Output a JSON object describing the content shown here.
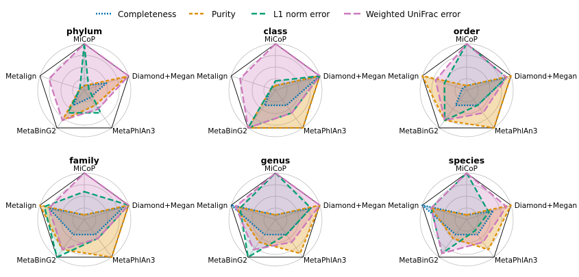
{
  "legend": [
    {
      "name": "Completeness",
      "color": "#0173b2",
      "dash": "2,2"
    },
    {
      "name": "Purity",
      "color": "#de8f05",
      "dash": "5,3"
    },
    {
      "name": "L1 norm error",
      "color": "#029e73",
      "dash": "8,4"
    },
    {
      "name": "Weighted UniFrac error",
      "color": "#cc78bc",
      "dash": "10,4"
    }
  ],
  "highlight_color": "#ff0000",
  "chart_data": [
    {
      "type": "radar",
      "title": "phylum",
      "axes": [
        "MiCoP",
        "Diamond+Megan",
        "MetaPhlAn3",
        "MetaBinG2",
        "Metalign"
      ],
      "highlight": [
        "Metalign"
      ],
      "grid_levels": 4,
      "rmax": 1,
      "series": [
        {
          "name": "Completeness",
          "values": [
            0.1,
            0.5,
            0.2,
            0.4,
            0.1
          ]
        },
        {
          "name": "Purity",
          "values": [
            0.1,
            0.96,
            0.4,
            0.8,
            0.1
          ]
        },
        {
          "name": "L1 norm error",
          "values": [
            1.0,
            0.1,
            0.6,
            0.6,
            0.1
          ]
        },
        {
          "name": "Weighted UniFrac error",
          "values": [
            1.0,
            1.0,
            0.5,
            0.8,
            0.8
          ]
        }
      ]
    },
    {
      "type": "radar",
      "title": "class",
      "axes": [
        "MiCoP",
        "Diamond+Megan",
        "MetaPhlAn3",
        "MetaBinG2",
        "Metalign"
      ],
      "highlight": [
        "MiCoP",
        "Metalign"
      ],
      "grid_levels": 4,
      "rmax": 1,
      "series": [
        {
          "name": "Completeness",
          "values": [
            0.1,
            1.0,
            0.4,
            0.4,
            0.1
          ]
        },
        {
          "name": "Purity",
          "values": [
            0.1,
            1.0,
            1.0,
            1.0,
            0.1
          ]
        },
        {
          "name": "L1 norm error",
          "values": [
            0.2,
            1.0,
            0.6,
            1.0,
            0.1
          ]
        },
        {
          "name": "Weighted UniFrac error",
          "values": [
            1.0,
            1.0,
            0.6,
            1.0,
            0.8
          ]
        }
      ]
    },
    {
      "type": "radar",
      "title": "order",
      "axes": [
        "MiCoP",
        "Diamond+Megan",
        "MetaPhlAn3",
        "MetaBinG2",
        "Metalign"
      ],
      "highlight": [],
      "grid_levels": 4,
      "rmax": 1,
      "series": [
        {
          "name": "Completeness",
          "values": [
            0.1,
            0.9,
            0.4,
            0.4,
            0.1
          ]
        },
        {
          "name": "Purity",
          "values": [
            0.1,
            1.0,
            1.0,
            0.8,
            1.0
          ]
        },
        {
          "name": "L1 norm error",
          "values": [
            1.0,
            0.9,
            0.4,
            0.8,
            0.5
          ]
        },
        {
          "name": "Weighted UniFrac error",
          "values": [
            1.0,
            0.9,
            0.6,
            0.8,
            0.7
          ]
        }
      ]
    },
    {
      "type": "radar",
      "title": "family",
      "axes": [
        "MiCoP",
        "Diamond+Megan",
        "MetaPhlAn3",
        "MetaBinG2",
        "Metalign"
      ],
      "highlight": [],
      "grid_levels": 4,
      "rmax": 1,
      "series": [
        {
          "name": "Completeness",
          "values": [
            0.1,
            0.9,
            0.4,
            0.4,
            0.8
          ]
        },
        {
          "name": "Purity",
          "values": [
            0.1,
            1.0,
            1.0,
            0.8,
            1.0
          ]
        },
        {
          "name": "L1 norm error",
          "values": [
            0.6,
            1.0,
            0.5,
            1.0,
            0.9
          ]
        },
        {
          "name": "Weighted UniFrac error",
          "values": [
            1.0,
            1.0,
            0.5,
            0.8,
            0.8
          ]
        }
      ]
    },
    {
      "type": "radar",
      "title": "genus",
      "axes": [
        "MiCoP",
        "Diamond+Megan",
        "MetaPhlAn3",
        "MetaBinG2",
        "Metalign"
      ],
      "highlight": [],
      "grid_levels": 4,
      "rmax": 1,
      "series": [
        {
          "name": "Completeness",
          "values": [
            0.1,
            0.8,
            0.4,
            0.4,
            1.0
          ]
        },
        {
          "name": "Purity",
          "values": [
            0.1,
            1.0,
            0.9,
            0.6,
            0.9
          ]
        },
        {
          "name": "L1 norm error",
          "values": [
            1.0,
            0.8,
            0.4,
            1.0,
            0.8
          ]
        },
        {
          "name": "Weighted UniFrac error",
          "values": [
            1.0,
            1.0,
            0.6,
            0.8,
            0.9
          ]
        }
      ]
    },
    {
      "type": "radar",
      "title": "species",
      "axes": [
        "MiCoP",
        "Diamond+Megan",
        "MetaPhlAn3",
        "MetaBinG2",
        "Metalign"
      ],
      "highlight": [],
      "grid_levels": 4,
      "rmax": 1,
      "series": [
        {
          "name": "Completeness",
          "values": [
            0.1,
            0.6,
            0.4,
            0.4,
            1.0
          ]
        },
        {
          "name": "Purity",
          "values": [
            0.1,
            1.0,
            0.8,
            0.5,
            0.8
          ]
        },
        {
          "name": "L1 norm error",
          "values": [
            1.0,
            0.5,
            0.3,
            0.9,
            0.8
          ]
        },
        {
          "name": "Weighted UniFrac error",
          "values": [
            1.0,
            0.9,
            0.6,
            0.9,
            0.8
          ]
        }
      ]
    }
  ]
}
